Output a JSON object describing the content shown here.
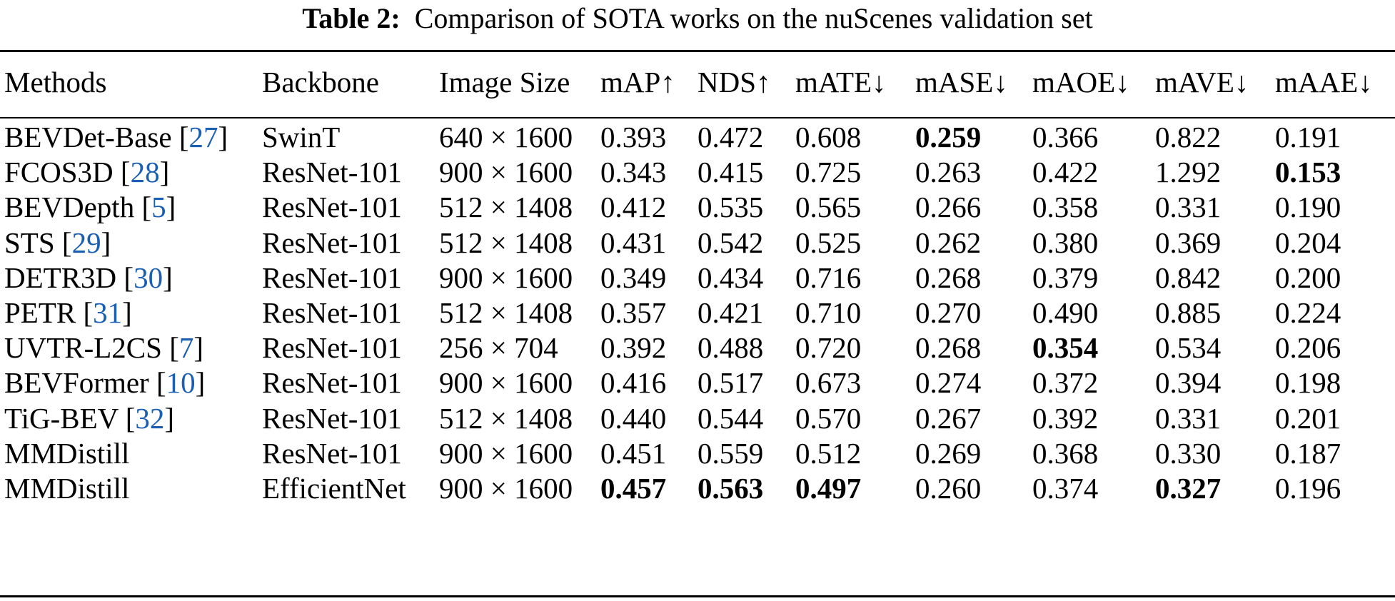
{
  "caption": {
    "label": "Table 2:",
    "text": "Comparison of SOTA works on the nuScenes validation set"
  },
  "headers": [
    "Methods",
    "Backbone",
    "Image Size",
    "mAP↑",
    "NDS↑",
    "mATE↓",
    "mASE↓",
    "mAOE↓",
    "mAVE↓",
    "mAAE↓"
  ],
  "rows": [
    {
      "method": "BEVDet-Base",
      "ref": "27",
      "backbone": "SwinT",
      "image_size": "640 × 1600",
      "mAP": "0.393",
      "NDS": "0.472",
      "mATE": "0.608",
      "mASE": "0.259",
      "mAOE": "0.366",
      "mAVE": "0.822",
      "mAAE": "0.191"
    },
    {
      "method": "FCOS3D",
      "ref": "28",
      "backbone": "ResNet-101",
      "image_size": "900 × 1600",
      "mAP": "0.343",
      "NDS": "0.415",
      "mATE": "0.725",
      "mASE": "0.263",
      "mAOE": "0.422",
      "mAVE": "1.292",
      "mAAE": "0.153"
    },
    {
      "method": "BEVDepth",
      "ref": "5",
      "backbone": "ResNet-101",
      "image_size": "512 × 1408",
      "mAP": "0.412",
      "NDS": "0.535",
      "mATE": "0.565",
      "mASE": "0.266",
      "mAOE": "0.358",
      "mAVE": "0.331",
      "mAAE": "0.190"
    },
    {
      "method": "STS",
      "ref": "29",
      "backbone": "ResNet-101",
      "image_size": "512 × 1408",
      "mAP": "0.431",
      "NDS": "0.542",
      "mATE": "0.525",
      "mASE": "0.262",
      "mAOE": "0.380",
      "mAVE": "0.369",
      "mAAE": "0.204"
    },
    {
      "method": "DETR3D",
      "ref": "30",
      "backbone": "ResNet-101",
      "image_size": "900 × 1600",
      "mAP": "0.349",
      "NDS": "0.434",
      "mATE": "0.716",
      "mASE": "0.268",
      "mAOE": "0.379",
      "mAVE": "0.842",
      "mAAE": "0.200"
    },
    {
      "method": "PETR",
      "ref": "31",
      "backbone": "ResNet-101",
      "image_size": "512 × 1408",
      "mAP": "0.357",
      "NDS": "0.421",
      "mATE": "0.710",
      "mASE": "0.270",
      "mAOE": "0.490",
      "mAVE": "0.885",
      "mAAE": "0.224"
    },
    {
      "method": "UVTR-L2CS",
      "ref": "7",
      "backbone": "ResNet-101",
      "image_size": "256 × 704",
      "mAP": "0.392",
      "NDS": "0.488",
      "mATE": "0.720",
      "mASE": "0.268",
      "mAOE": "0.354",
      "mAVE": "0.534",
      "mAAE": "0.206"
    },
    {
      "method": "BEVFormer",
      "ref": "10",
      "backbone": "ResNet-101",
      "image_size": "900 × 1600",
      "mAP": "0.416",
      "NDS": "0.517",
      "mATE": "0.673",
      "mASE": "0.274",
      "mAOE": "0.372",
      "mAVE": "0.394",
      "mAAE": "0.198"
    },
    {
      "method": "TiG-BEV",
      "ref": "32",
      "backbone": "ResNet-101",
      "image_size": "512 × 1408",
      "mAP": "0.440",
      "NDS": "0.544",
      "mATE": "0.570",
      "mASE": "0.267",
      "mAOE": "0.392",
      "mAVE": "0.331",
      "mAAE": "0.201"
    },
    {
      "method": "MMDistill",
      "ref": "",
      "backbone": "ResNet-101",
      "image_size": "900 × 1600",
      "mAP": "0.451",
      "NDS": "0.559",
      "mATE": "0.512",
      "mASE": "0.269",
      "mAOE": "0.368",
      "mAVE": "0.330",
      "mAAE": "0.187"
    },
    {
      "method": "MMDistill",
      "ref": "",
      "backbone": "EfficientNet",
      "image_size": "900 × 1600",
      "mAP": "0.457",
      "NDS": "0.563",
      "mATE": "0.497",
      "mASE": "0.260",
      "mAOE": "0.374",
      "mAVE": "0.327",
      "mAAE": "0.196"
    }
  ],
  "bold_cells": [
    {
      "row": 0,
      "col": "mASE"
    },
    {
      "row": 1,
      "col": "mAAE"
    },
    {
      "row": 6,
      "col": "mAOE"
    },
    {
      "row": 10,
      "col": "mAP"
    },
    {
      "row": 10,
      "col": "NDS"
    },
    {
      "row": 10,
      "col": "mATE"
    },
    {
      "row": 10,
      "col": "mAVE"
    }
  ],
  "colors": {
    "text": "#000000",
    "reference_link": "#1a5fb4",
    "background": "#ffffff"
  }
}
